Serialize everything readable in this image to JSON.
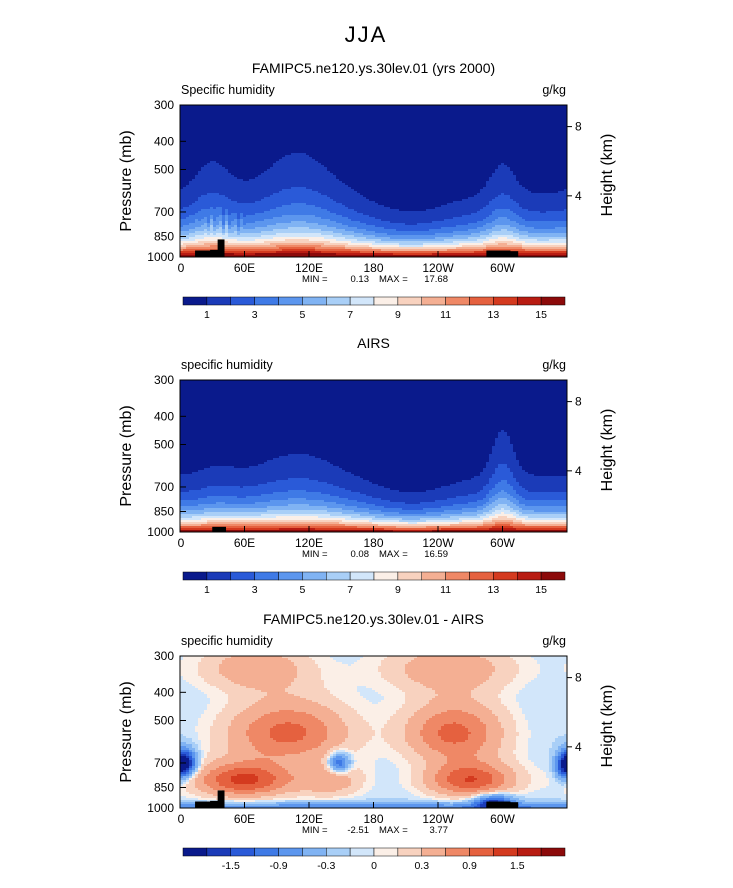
{
  "season_title": "JJA",
  "colors": {
    "seq_palette": [
      "#0a1a8c",
      "#1b3bb8",
      "#2a5ad8",
      "#3f7ae6",
      "#5c96ee",
      "#80b3f3",
      "#a9cff7",
      "#d2e6fa",
      "#fbefe7",
      "#f8d2bf",
      "#f4af93",
      "#ef8866",
      "#e5613f",
      "#d43a1f",
      "#b81c12",
      "#8c0a0a"
    ],
    "diff_palette": [
      "#0a1a8c",
      "#1b3bb8",
      "#2a5ad8",
      "#3f7ae6",
      "#5c96ee",
      "#80b3f3",
      "#a9cff7",
      "#d2e6fa",
      "#fbefe7",
      "#f8d2bf",
      "#f4af93",
      "#ef8866",
      "#e5613f",
      "#d43a1f",
      "#b81c12",
      "#8c0a0a"
    ]
  },
  "chart_data": [
    {
      "type": "heatmap",
      "id": "model",
      "title": "FAMIPC5.ne120.ys.30lev.01 (yrs 2000)",
      "left_label": "Specific humidity",
      "units": "g/kg",
      "ylabel": "Pressure (mb)",
      "y2label": "Height (km)",
      "y_ticks": [
        "300",
        "400",
        "500",
        "700",
        "850",
        "1000"
      ],
      "y_tick_values": [
        300,
        400,
        500,
        700,
        850,
        1000
      ],
      "y2_ticks": [
        "8",
        "4"
      ],
      "y2_tick_values": [
        356,
        616
      ],
      "x_ticks": [
        "0",
        "60E",
        "120E",
        "180",
        "120W",
        "60W"
      ],
      "x_tick_values": [
        0,
        60,
        120,
        180,
        240,
        300
      ],
      "xlim": [
        0,
        360
      ],
      "ylim": [
        300,
        1000
      ],
      "min_label": "MIN =",
      "min": "0.13",
      "max_label": "MAX =",
      "max": "17.68",
      "colorbar_labels": [
        "1",
        "3",
        "5",
        "7",
        "9",
        "11",
        "13",
        "15"
      ],
      "levels": [
        0,
        1,
        2,
        3,
        4,
        5,
        6,
        7,
        8,
        9,
        10,
        11,
        12,
        13,
        14,
        15,
        16
      ],
      "field": "q",
      "variant": "model"
    },
    {
      "type": "heatmap",
      "id": "obs",
      "title": "AIRS",
      "left_label": "specific humidity",
      "units": "g/kg",
      "ylabel": "Pressure (mb)",
      "y2label": "Height (km)",
      "y_ticks": [
        "300",
        "400",
        "500",
        "700",
        "850",
        "1000"
      ],
      "y_tick_values": [
        300,
        400,
        500,
        700,
        850,
        1000
      ],
      "y2_ticks": [
        "8",
        "4"
      ],
      "y2_tick_values": [
        356,
        616
      ],
      "x_ticks": [
        "0",
        "60E",
        "120E",
        "180",
        "120W",
        "60W"
      ],
      "x_tick_values": [
        0,
        60,
        120,
        180,
        240,
        300
      ],
      "xlim": [
        0,
        360
      ],
      "ylim": [
        300,
        1000
      ],
      "min_label": "MIN =",
      "min": "0.08",
      "max_label": "MAX =",
      "max": "16.59",
      "colorbar_labels": [
        "1",
        "3",
        "5",
        "7",
        "9",
        "11",
        "13",
        "15"
      ],
      "levels": [
        0,
        1,
        2,
        3,
        4,
        5,
        6,
        7,
        8,
        9,
        10,
        11,
        12,
        13,
        14,
        15,
        16
      ],
      "field": "q",
      "variant": "obs"
    },
    {
      "type": "heatmap",
      "id": "diff",
      "title": "FAMIPC5.ne120.ys.30lev.01 - AIRS",
      "left_label": "specific humidity",
      "units": "g/kg",
      "ylabel": "Pressure (mb)",
      "y2label": "Height (km)",
      "y_ticks": [
        "300",
        "400",
        "500",
        "700",
        "850",
        "1000"
      ],
      "y_tick_values": [
        300,
        400,
        500,
        700,
        850,
        1000
      ],
      "y2_ticks": [
        "8",
        "4"
      ],
      "y2_tick_values": [
        356,
        616
      ],
      "x_ticks": [
        "0",
        "60E",
        "120E",
        "180",
        "120W",
        "60W"
      ],
      "x_tick_values": [
        0,
        60,
        120,
        180,
        240,
        300
      ],
      "xlim": [
        0,
        360
      ],
      "ylim": [
        300,
        1000
      ],
      "min_label": "MIN =",
      "min": "-2.51",
      "max_label": "MAX =",
      "max": "3.77",
      "colorbar_labels": [
        "-1.5",
        "-0.9",
        "-0.3",
        "0",
        "0.3",
        "0.9",
        "1.5"
      ],
      "levels": [
        -2.1,
        -1.8,
        -1.5,
        -1.2,
        -0.9,
        -0.6,
        -0.3,
        -0.1,
        0,
        0.1,
        0.3,
        0.6,
        0.9,
        1.2,
        1.5,
        1.8,
        2.1
      ],
      "field": "dq",
      "variant": "diff"
    }
  ]
}
